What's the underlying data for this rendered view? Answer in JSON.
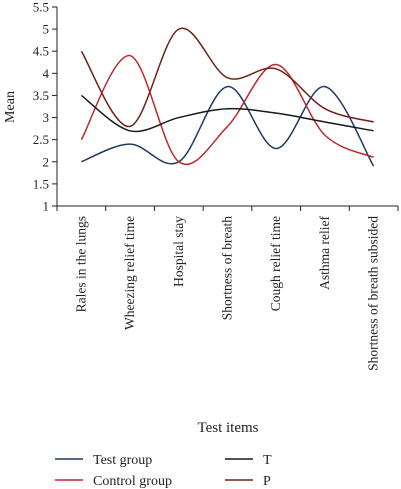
{
  "chart_data": {
    "type": "line",
    "title": "",
    "xlabel": "Test items",
    "ylabel": "Mean",
    "ylim": [
      1,
      5.5
    ],
    "yticks": [
      1,
      1.5,
      2,
      2.5,
      3,
      3.5,
      4,
      4.5,
      5,
      5.5
    ],
    "ytick_labels": [
      "1",
      "1.5",
      "2",
      "2.5",
      "3",
      "3.5",
      "4",
      "4.5",
      "5",
      "5.5"
    ],
    "categories": [
      "Rales in the lungs",
      "Wheezing relief time",
      "Hospital stay",
      "Shortness of breath",
      "Cough relief time",
      "Asthma relief",
      "Shortness of breath subsided"
    ],
    "smooth": true,
    "grid": false,
    "legend_position": "bottom",
    "series": [
      {
        "name": "Test group",
        "color": "#1f3a5f",
        "values": [
          2.0,
          2.4,
          2.0,
          3.7,
          2.3,
          3.7,
          1.9
        ]
      },
      {
        "name": "Control group",
        "color": "#c0272d",
        "values": [
          2.5,
          4.4,
          2.0,
          2.8,
          4.2,
          2.6,
          2.1
        ]
      },
      {
        "name": "T",
        "color": "#1a1a1a",
        "values": [
          3.5,
          2.7,
          3.0,
          3.2,
          3.1,
          2.9,
          2.7
        ]
      },
      {
        "name": "P",
        "color": "#6b2218",
        "values": [
          4.5,
          2.8,
          5.0,
          3.9,
          4.1,
          3.2,
          2.9
        ]
      }
    ]
  }
}
